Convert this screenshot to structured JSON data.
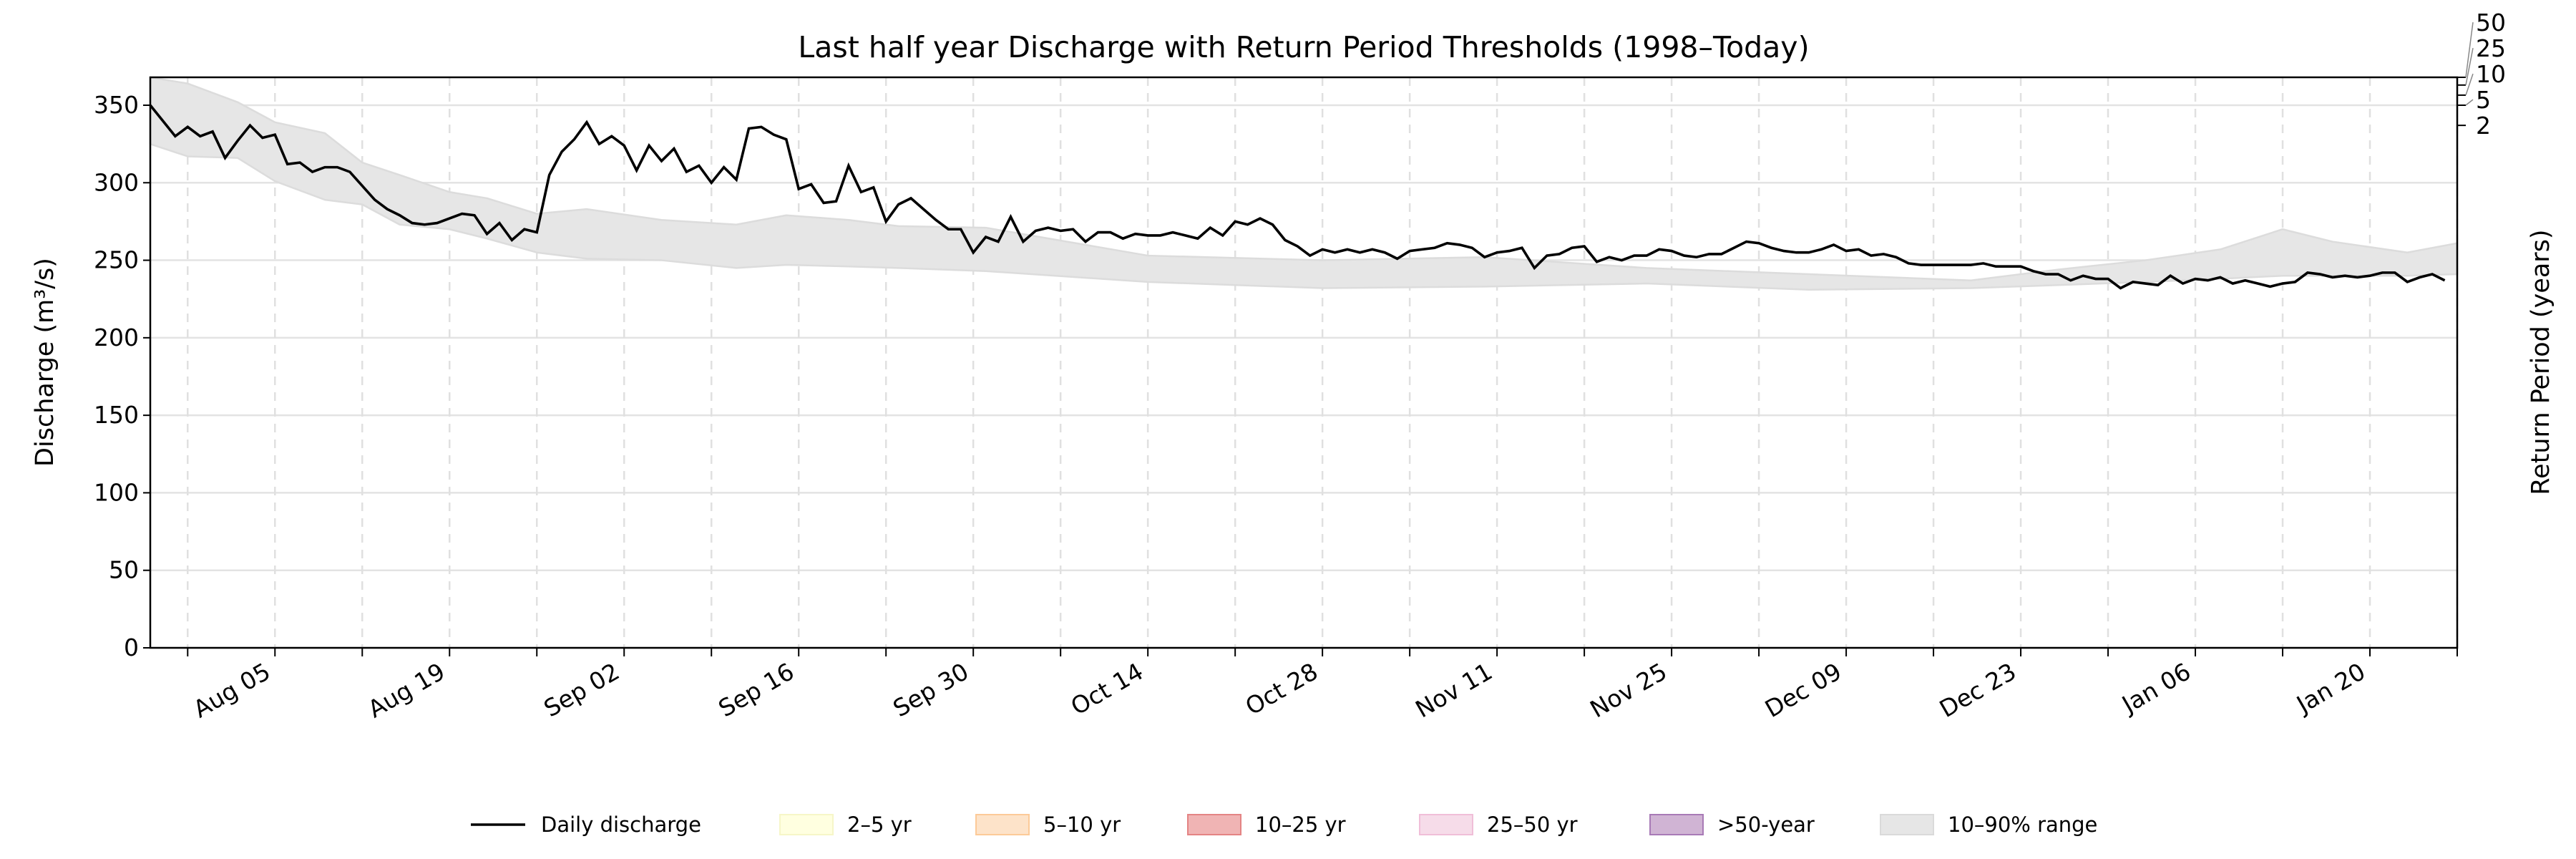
{
  "chart_data": {
    "type": "line",
    "title": "Last half year Discharge with Return Period Thresholds (1998–Today)",
    "xlabel": "",
    "ylabel": "Discharge (m³/s)",
    "ylabel_right": "Return Period (years)",
    "xlim": [
      "Jul 26",
      "Jan 27"
    ],
    "ylim": [
      0,
      368
    ],
    "y_ticks": [
      0,
      50,
      100,
      150,
      200,
      250,
      300,
      350
    ],
    "x_tick_labels": [
      "Aug 05",
      "Aug 19",
      "Sep 02",
      "Sep 16",
      "Sep 30",
      "Oct 14",
      "Oct 28",
      "Nov 11",
      "Nov 25",
      "Dec 09",
      "Dec 23",
      "Jan 06",
      "Jan 20"
    ],
    "x_minor_ticks": "weekly",
    "grid": true,
    "return_period_ticks": [
      {
        "label": "2",
        "discharge": 337
      },
      {
        "label": "5",
        "discharge": 350
      },
      {
        "label": "10",
        "discharge": 356.5
      },
      {
        "label": "25",
        "discharge": 363
      },
      {
        "label": "50",
        "discharge": 368
      }
    ],
    "series": [
      {
        "name": "Daily discharge",
        "color": "#000000",
        "start": "Jul 26",
        "step": "1 day",
        "values": [
          350,
          340,
          330,
          336,
          330,
          333,
          316,
          327,
          337,
          329,
          331,
          312,
          313,
          307,
          310,
          310,
          307,
          298,
          289,
          283,
          279,
          274,
          273,
          274,
          277,
          280,
          279,
          267,
          274,
          263,
          270,
          268,
          305,
          320,
          328,
          339,
          325,
          330,
          324,
          308,
          324,
          314,
          322,
          307,
          311,
          300,
          310,
          302,
          335,
          336,
          331,
          328,
          296,
          299,
          287,
          288,
          311,
          294,
          297,
          275,
          286,
          290,
          283,
          276,
          270,
          270,
          255,
          265,
          262,
          278,
          262,
          269,
          271,
          269,
          270,
          262,
          268,
          268,
          264,
          267,
          266,
          266,
          268,
          266,
          264,
          271,
          266,
          275,
          273,
          277,
          273,
          263,
          259,
          253,
          257,
          255,
          257,
          255,
          257,
          255,
          251,
          256,
          257,
          258,
          261,
          260,
          258,
          252,
          255,
          256,
          258,
          245,
          253,
          254,
          258,
          259,
          249,
          252,
          250,
          253,
          253,
          257,
          256,
          253,
          252,
          254,
          254,
          258,
          262,
          261,
          258,
          256,
          255,
          255,
          257,
          260,
          256,
          257,
          253,
          254,
          252,
          248,
          247,
          247,
          247,
          247,
          247,
          248,
          246,
          246,
          246,
          243,
          241,
          241,
          237,
          240,
          238,
          238,
          232,
          236,
          235,
          234,
          240,
          235,
          238,
          237,
          239,
          235,
          237,
          235,
          233,
          235,
          236,
          242,
          241,
          239,
          240,
          239,
          240,
          242,
          242,
          236,
          239,
          241,
          237
        ]
      }
    ],
    "range_band": {
      "name": "10–90% range",
      "color": "#e6e6e6",
      "dates": [
        "Jul 26",
        "Jul 29",
        "Aug 02",
        "Aug 05",
        "Aug 09",
        "Aug 12",
        "Aug 15",
        "Aug 19",
        "Aug 22",
        "Aug 26",
        "Aug 30",
        "Sep 05",
        "Sep 11",
        "Sep 15",
        "Sep 20",
        "Sep 24",
        "Oct 01",
        "Oct 14",
        "Oct 28",
        "Nov 10",
        "Nov 23",
        "Dec 06",
        "Dec 19",
        "Dec 26",
        "Jan 02",
        "Jan 08",
        "Jan 13",
        "Jan 17",
        "Jan 23",
        "Jan 27"
      ],
      "upper": [
        370,
        364,
        352,
        339,
        332,
        313,
        305,
        294,
        290,
        280,
        283,
        276,
        273,
        279,
        276,
        272,
        271,
        253,
        250,
        252,
        245,
        241,
        237,
        244,
        250,
        257,
        270,
        262,
        255,
        261
      ],
      "lower": [
        325,
        317,
        316,
        301,
        289,
        286,
        273,
        270,
        264,
        255,
        251,
        250,
        245,
        247,
        246,
        245,
        243,
        236,
        232,
        233,
        235,
        231,
        232,
        234,
        236,
        238,
        240,
        240,
        240,
        241
      ]
    },
    "legend": {
      "placement": "bottom",
      "items": [
        {
          "label": "Daily discharge",
          "kind": "line",
          "color": "#000000"
        },
        {
          "label": "2–5 yr",
          "kind": "patch",
          "color": "#ffffe0",
          "edge": "#f6f6c8"
        },
        {
          "label": "5–10 yr",
          "kind": "patch",
          "color": "#fde3c9",
          "edge": "#fcca98"
        },
        {
          "label": "10–25 yr",
          "kind": "patch",
          "color": "#f0b4b4",
          "edge": "#e48484"
        },
        {
          "label": "25–50 yr",
          "kind": "patch",
          "color": "#f6dce9",
          "edge": "#f0bed8"
        },
        {
          "label": ">50-year",
          "kind": "patch",
          "color": "#d0b4d4",
          "edge": "#a87ab6"
        },
        {
          "label": "10–90% range",
          "kind": "patch",
          "color": "#e6e6e6",
          "edge": "#dadada"
        }
      ]
    }
  }
}
